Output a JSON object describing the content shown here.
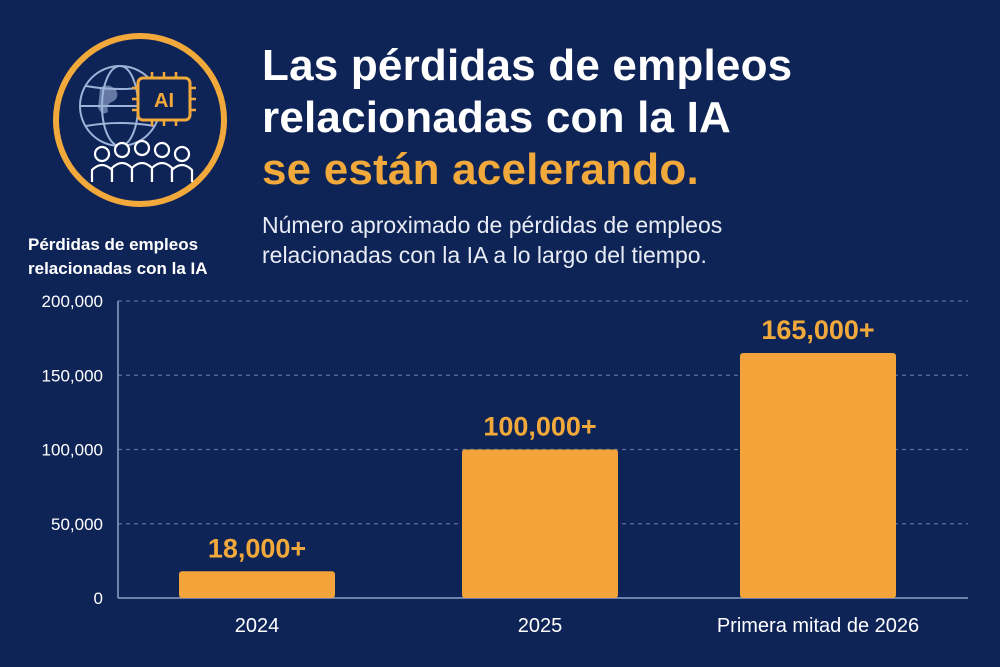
{
  "header": {
    "title_line1": "Las pérdidas de empleos",
    "title_line2": "relacionadas con la IA",
    "title_line3": "se están acelerando.",
    "subtitle": "Número aproximado de pérdidas de empleos relacionadas con la IA a lo largo del tiempo.",
    "emblem_badge": "AI"
  },
  "colors": {
    "background": "#0f2456",
    "accent": "#f2a93b",
    "bar": "#f2a33a",
    "text": "#ffffff",
    "grid": "#5b6f9a"
  },
  "icons": [
    "globe-icon",
    "ai-chip-icon",
    "people-group-icon"
  ],
  "chart_data": {
    "type": "bar",
    "title": "",
    "xlabel": "",
    "ylabel": "Pérdidas de empleos relacionadas con la IA",
    "categories": [
      "2024",
      "2025",
      "Primera mitad de 2026"
    ],
    "values": [
      18000,
      100000,
      165000
    ],
    "value_labels": [
      "18,000+",
      "100,000+",
      "165,000+"
    ],
    "ylim": [
      0,
      200000
    ],
    "yticks": [
      0,
      50000,
      100000,
      150000,
      200000
    ],
    "ytick_labels": [
      "0",
      "50,000",
      "100,000",
      "150,000",
      "200,000"
    ],
    "grid": true,
    "legend": "none"
  }
}
